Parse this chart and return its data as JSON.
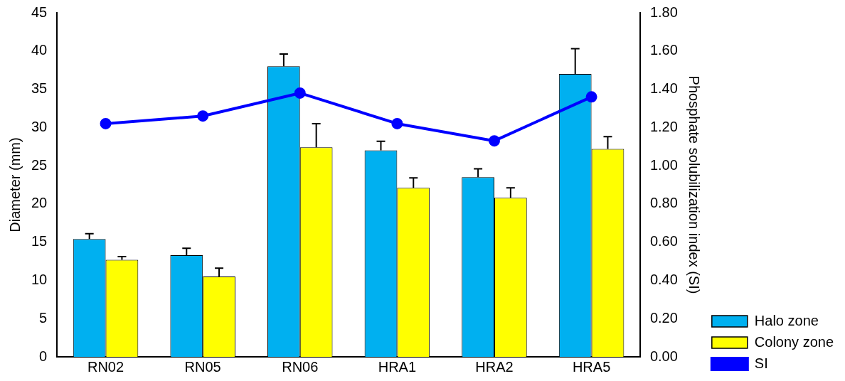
{
  "chart_data": {
    "type": "bar",
    "categories": [
      "RN02",
      "RN05",
      "RN06",
      "HRA1",
      "HRA2",
      "HRA5"
    ],
    "series": [
      {
        "name": "Halo zone",
        "color": "#00b0f0",
        "values": [
          15.4,
          13.3,
          38.0,
          27.0,
          23.5,
          37.0
        ],
        "errors": [
          [
            15.4,
            16.1
          ],
          [
            13.3,
            14.2
          ],
          [
            38.0,
            39.6
          ],
          [
            27.0,
            28.2
          ],
          [
            23.5,
            24.6
          ],
          [
            37.0,
            40.3
          ]
        ]
      },
      {
        "name": "Colony zone",
        "color": "#ffff00",
        "values": [
          12.7,
          10.5,
          27.4,
          22.1,
          20.8,
          27.2
        ],
        "errors": [
          [
            12.7,
            13.1
          ],
          [
            10.5,
            11.6
          ],
          [
            27.4,
            30.5
          ],
          [
            22.1,
            23.4
          ],
          [
            20.8,
            22.1
          ],
          [
            27.2,
            28.8
          ]
        ]
      },
      {
        "name": "SI",
        "type": "line",
        "axis": "y2",
        "color": "#0000ff",
        "values": [
          1.22,
          1.26,
          1.38,
          1.22,
          1.13,
          1.36
        ]
      }
    ],
    "ylabel": "Diameter (mm)",
    "y2label": "Phosphate solubilization index (SI)",
    "ylim": [
      0,
      45
    ],
    "yticks": [
      0,
      5,
      10,
      15,
      20,
      25,
      30,
      35,
      40,
      45
    ],
    "y2lim": [
      0,
      1.8
    ],
    "y2ticks": [
      {
        "value": 0,
        "label": "0.00"
      },
      {
        "value": 0.2,
        "label": "0.20"
      },
      {
        "value": 0.4,
        "label": "0.40"
      },
      {
        "value": 0.6,
        "label": "0.60"
      },
      {
        "value": 0.8,
        "label": "0.80"
      },
      {
        "value": 1.0,
        "label": "1.00"
      },
      {
        "value": 1.2,
        "label": "1.20"
      },
      {
        "value": 1.4,
        "label": "1.40"
      },
      {
        "value": 1.6,
        "label": "1.60"
      },
      {
        "value": 1.8,
        "label": "1.80"
      }
    ],
    "legend": "bottom right",
    "grid": false,
    "marker": "circle",
    "line_style": "solid"
  }
}
